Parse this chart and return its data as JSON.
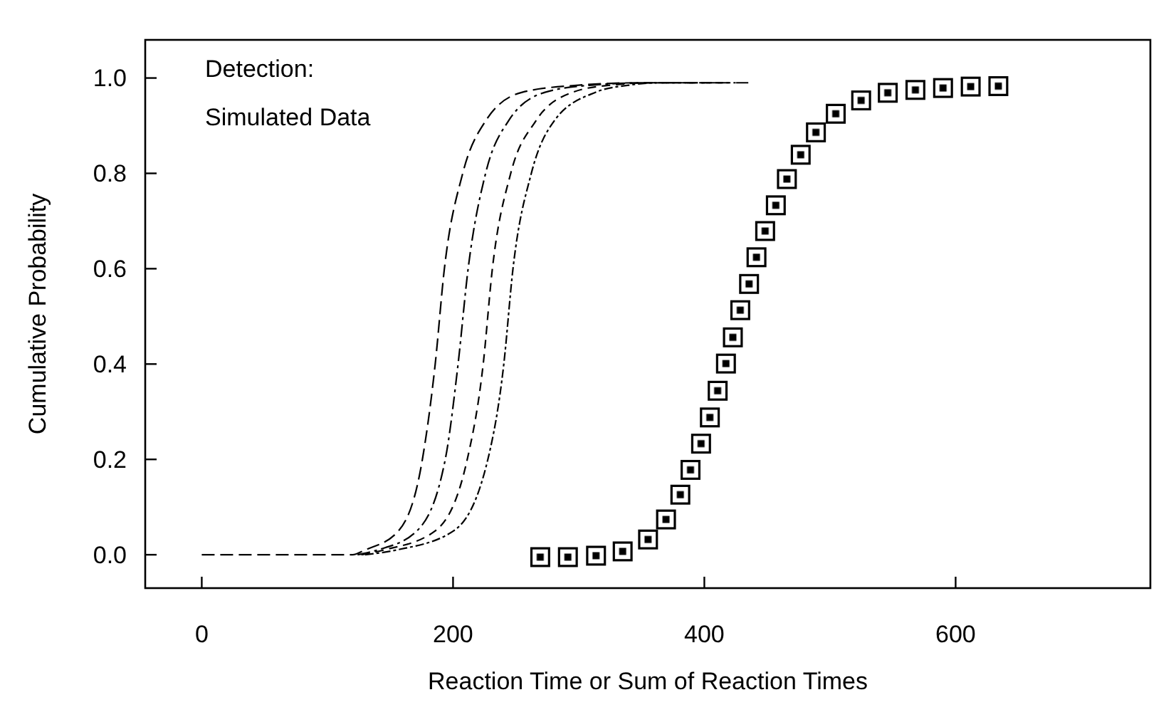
{
  "chart_data": {
    "type": "line",
    "xlabel": "Reaction Time or Sum of Reaction Times",
    "ylabel": "Cumulative Probability",
    "annotations": [
      "Detection:",
      "Simulated Data"
    ],
    "xlim": [
      -45,
      755
    ],
    "ylim": [
      -0.07,
      1.08
    ],
    "xticks": [
      0,
      200,
      400,
      600
    ],
    "yticks": [
      {
        "value": 0,
        "label": "0.0"
      },
      {
        "value": 0.2,
        "label": "0.2"
      },
      {
        "value": 0.4,
        "label": "0.4"
      },
      {
        "value": 0.6,
        "label": "0.6"
      },
      {
        "value": 0.8,
        "label": "0.8"
      },
      {
        "value": 1,
        "label": "1.0"
      }
    ],
    "grid": false,
    "series": [
      {
        "color": "#000000",
        "line_style": "dashed",
        "x": [
          0,
          120,
          130,
          156.6,
          175.6,
          185.8,
          193.1,
          207.7,
          225.9,
          255,
          300,
          350,
          435
        ],
        "values": [
          0,
          0,
          0.01,
          0.05,
          0.2,
          0.4,
          0.6,
          0.8,
          0.91,
          0.97,
          0.985,
          0.99,
          0.99
        ]
      },
      {
        "color": "#000000",
        "line_style": "dashed",
        "x": [
          124,
          140,
          171.2,
          193.8,
          204,
          212,
          225.9,
          244.1,
          273.2,
          310,
          355,
          425
        ],
        "values": [
          0,
          0.01,
          0.05,
          0.2,
          0.4,
          0.6,
          0.8,
          0.91,
          0.97,
          0.985,
          0.99,
          0.99
        ]
      },
      {
        "color": "#000000",
        "line_style": "dashed",
        "x": [
          127,
          145,
          185.8,
          211.3,
          224,
          231.3,
          245.9,
          265.9,
          295.1,
          325,
          360,
          415
        ],
        "values": [
          0,
          0.01,
          0.05,
          0.2,
          0.4,
          0.6,
          0.8,
          0.91,
          0.97,
          0.985,
          0.99,
          0.99
        ]
      },
      {
        "color": "#000000",
        "line_style": "dashed",
        "x": [
          130,
          155,
          200.4,
          227.7,
          240.4,
          247.7,
          262.3,
          280.5,
          313.3,
          340,
          365,
          405
        ],
        "values": [
          0,
          0.01,
          0.05,
          0.2,
          0.4,
          0.6,
          0.8,
          0.91,
          0.97,
          0.985,
          0.99,
          0.99
        ]
      },
      {
        "type": "scatter",
        "marker": "square",
        "color": "#000000",
        "x": [
          269.4,
          291.4,
          313.8,
          335,
          355.2,
          369.5,
          380.9,
          389,
          397.4,
          404.4,
          410.6,
          417.2,
          422.7,
          428.6,
          435.6,
          441.5,
          448.4,
          456.9,
          465.7,
          476.7,
          488.8,
          504.6,
          524.8,
          546,
          568,
          590,
          612,
          634
        ],
        "values": [
          -0.005,
          -0.005,
          -0.002,
          0.007,
          0.032,
          0.074,
          0.126,
          0.178,
          0.233,
          0.288,
          0.344,
          0.401,
          0.456,
          0.513,
          0.568,
          0.624,
          0.679,
          0.733,
          0.788,
          0.839,
          0.886,
          0.925,
          0.953,
          0.969,
          0.975,
          0.979,
          0.982,
          0.983
        ]
      }
    ]
  }
}
